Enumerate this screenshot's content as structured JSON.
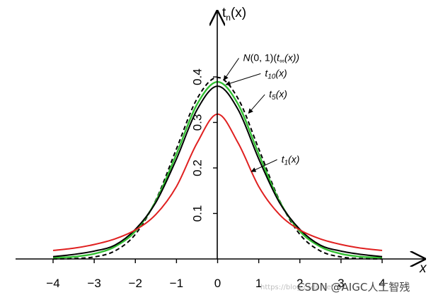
{
  "chart_data": {
    "type": "line",
    "title": "",
    "xlabel": "x",
    "ylabel_main": "t",
    "ylabel_sub": "n",
    "ylabel_tail": "(x)",
    "xlim": [
      -4,
      4
    ],
    "ylim": [
      0,
      0.42
    ],
    "x_ticks": [
      -4,
      -3,
      -2,
      -1,
      0,
      1,
      2,
      3,
      4
    ],
    "x_tick_labels": [
      "−4",
      "−3",
      "−2",
      "−1",
      "0",
      "1",
      "2",
      "3",
      "4"
    ],
    "y_ticks": [
      0.1,
      0.2,
      0.3,
      0.4
    ],
    "y_tick_labels": [
      "0.1",
      "0.2",
      "0.3",
      "0.4"
    ],
    "grid": false,
    "series": [
      {
        "color": "#000000",
        "dash": true,
        "x": [
          -4,
          -3.5,
          -3,
          -2.5,
          -2,
          -1.5,
          -1,
          -0.5,
          0,
          0.5,
          1,
          1.5,
          2,
          2.5,
          3,
          3.5,
          4
        ],
        "y": [
          0.0001,
          0.0009,
          0.0044,
          0.0175,
          0.054,
          0.1295,
          0.242,
          0.352,
          0.3989,
          0.352,
          0.242,
          0.1295,
          0.054,
          0.0175,
          0.0044,
          0.0009,
          0.0001
        ]
      },
      {
        "color": "#33c033",
        "dash": false,
        "x": [
          -4,
          -3.5,
          -3,
          -2.5,
          -2,
          -1.5,
          -1,
          -0.5,
          0,
          0.5,
          1,
          1.5,
          2,
          2.5,
          3,
          3.5,
          4
        ],
        "y": [
          0.0028,
          0.0048,
          0.0114,
          0.0269,
          0.061,
          0.1274,
          0.2304,
          0.3397,
          0.3891,
          0.3397,
          0.2304,
          0.1274,
          0.061,
          0.0269,
          0.0114,
          0.0048,
          0.0028
        ]
      },
      {
        "color": "#000000",
        "dash": false,
        "x": [
          -4,
          -3.5,
          -3,
          -2.5,
          -2,
          -1.5,
          -1,
          -0.5,
          0,
          0.5,
          1,
          1.5,
          2,
          2.5,
          3,
          3.5,
          4
        ],
        "y": [
          0.0051,
          0.0099,
          0.0173,
          0.0303,
          0.0651,
          0.1245,
          0.2197,
          0.3279,
          0.3796,
          0.3279,
          0.2197,
          0.1245,
          0.0651,
          0.0303,
          0.0173,
          0.0099,
          0.0051
        ]
      },
      {
        "color": "#e02020",
        "dash": false,
        "x": [
          -4,
          -3.5,
          -3,
          -2.5,
          -2,
          -1.5,
          -1,
          -0.5,
          0,
          0.5,
          1,
          1.5,
          2,
          2.5,
          3,
          3.5,
          4
        ],
        "y": [
          0.0187,
          0.0236,
          0.0318,
          0.0439,
          0.0637,
          0.0979,
          0.1592,
          0.2546,
          0.3183,
          0.2546,
          0.1592,
          0.0979,
          0.0637,
          0.0439,
          0.0318,
          0.0236,
          0.0187
        ]
      }
    ],
    "annotations": [
      {
        "main": "N",
        "rest": "(0, 1)(",
        "var": "t",
        "sub": "∞",
        "tail": "(x))",
        "point": [
          0.15,
          0.393
        ],
        "text_at": [
          0.62,
          0.435
        ]
      },
      {
        "main": "t",
        "sub": "10",
        "tail": "(x)",
        "point": [
          0.2,
          0.383
        ],
        "text_at": [
          1.15,
          0.401
        ]
      },
      {
        "main": "t",
        "sub": "5",
        "tail": "(x)",
        "point": [
          0.75,
          0.32
        ],
        "text_at": [
          1.25,
          0.355
        ]
      },
      {
        "main": "t",
        "sub": "1",
        "tail": "(x)",
        "point": [
          0.82,
          0.192
        ],
        "text_at": [
          1.55,
          0.212
        ]
      }
    ]
  },
  "watermark": {
    "faint": "https://blog.csdn.net/...",
    "main": "CSDN @AIGC人工智残"
  }
}
